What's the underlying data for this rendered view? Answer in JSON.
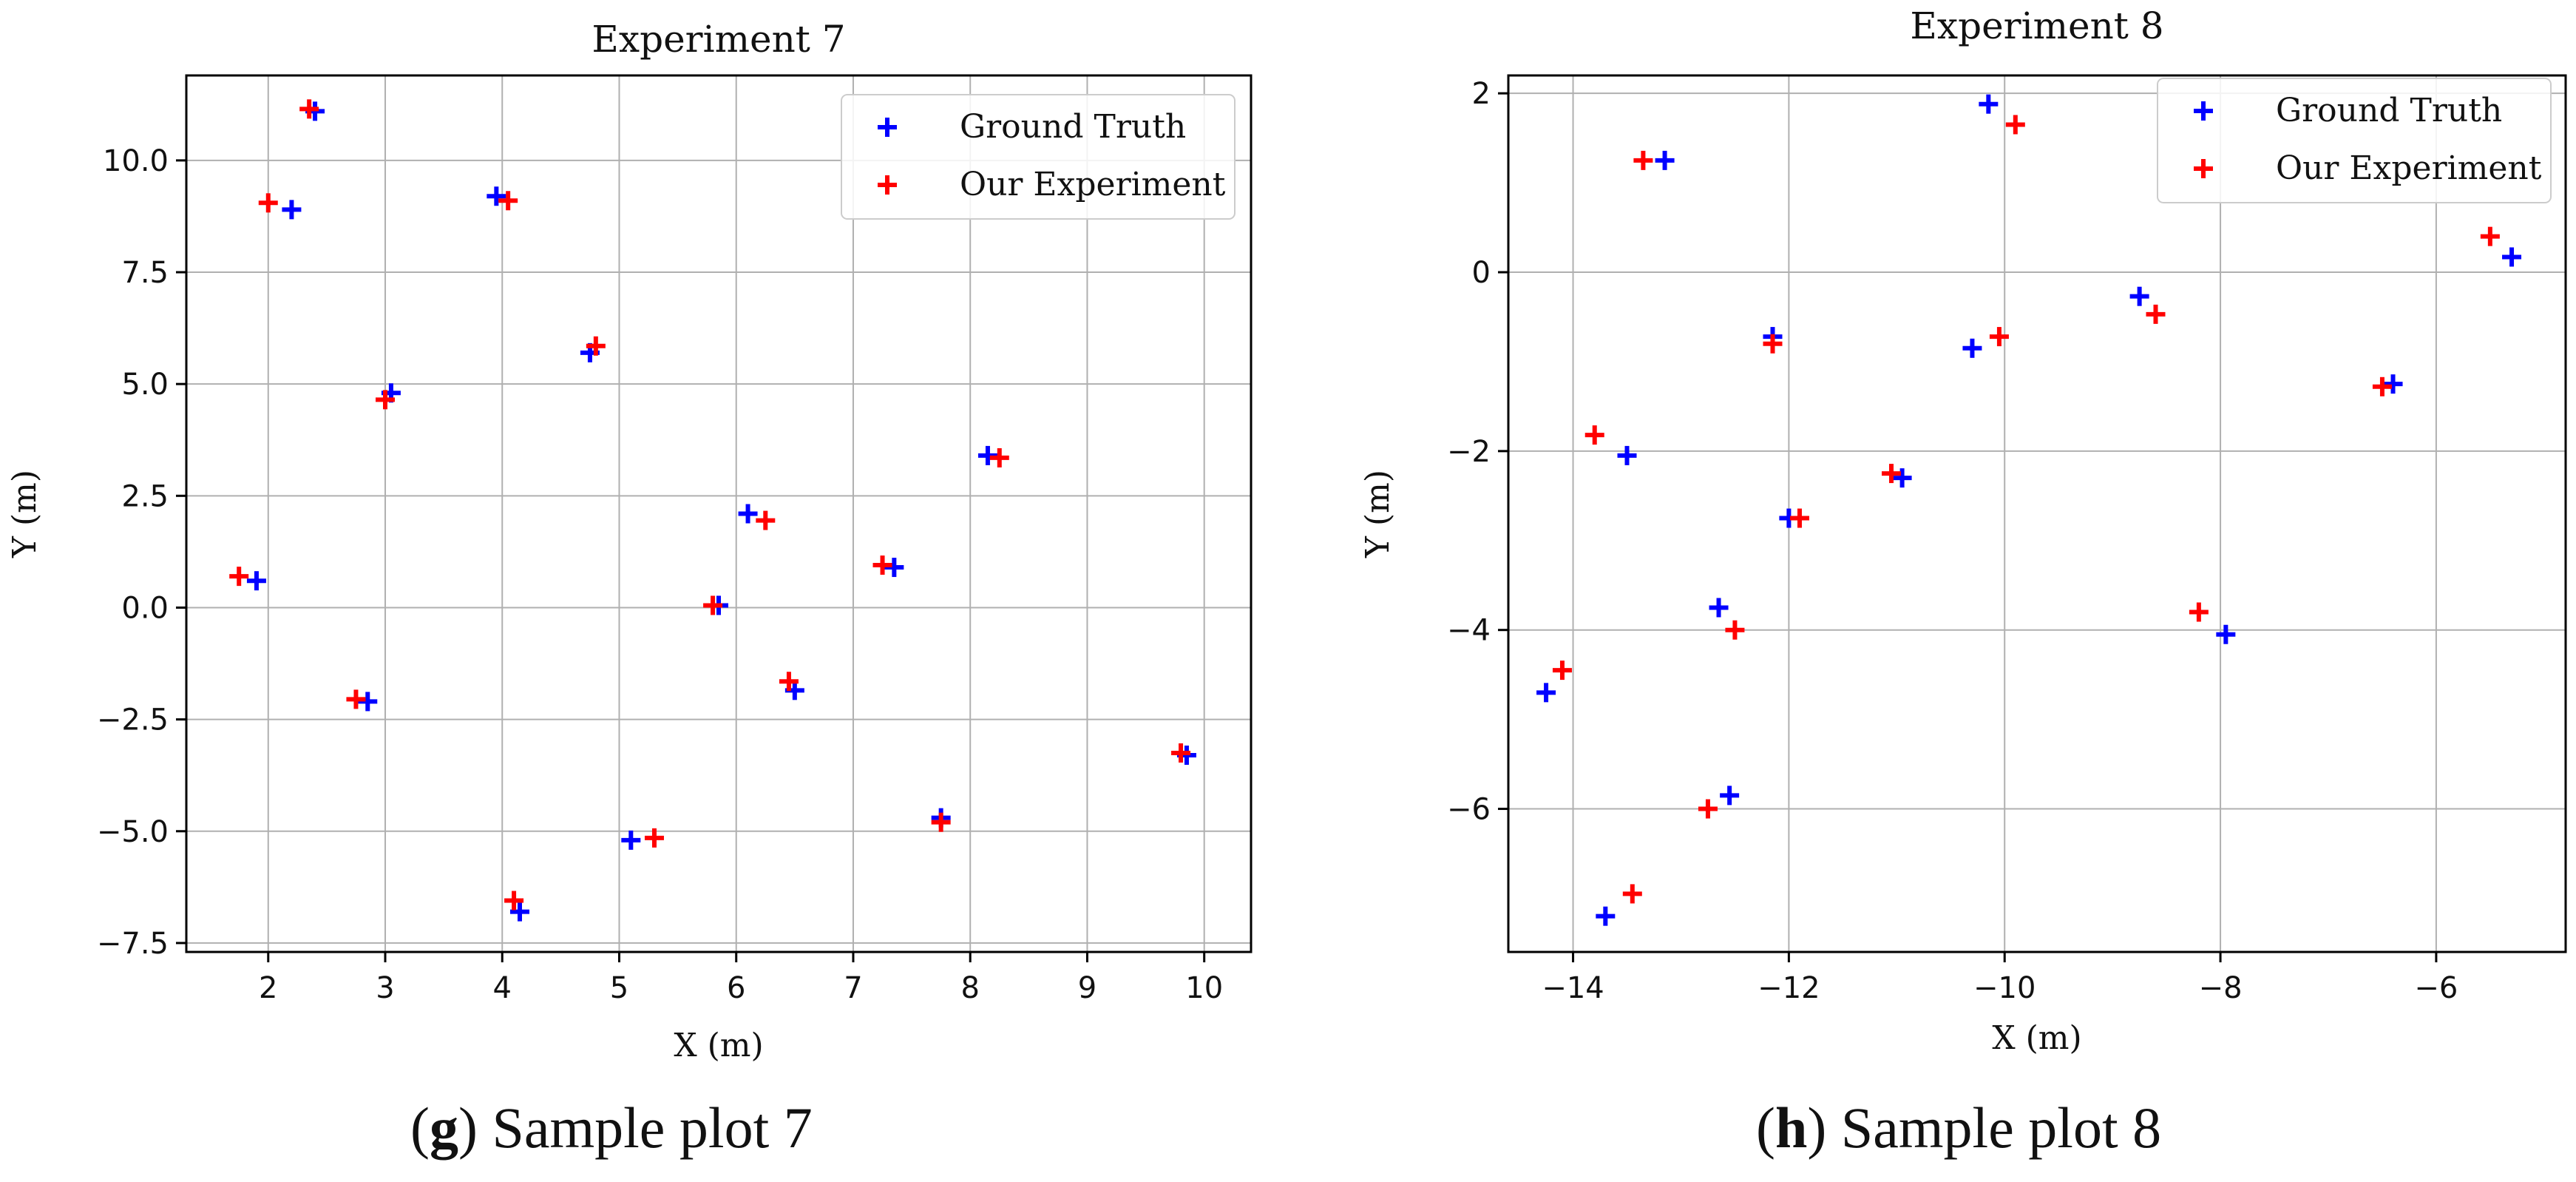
{
  "chart_data": [
    {
      "type": "scatter",
      "title": "Experiment 7",
      "xlabel": "X (m)",
      "ylabel": "Y (m)",
      "xlim": [
        1.3,
        10.4
      ],
      "ylim": [
        -7.7,
        11.9
      ],
      "xticks": [
        2,
        3,
        4,
        5,
        6,
        7,
        8,
        9,
        10
      ],
      "yticks": [
        -7.5,
        -5.0,
        -2.5,
        0.0,
        2.5,
        5.0,
        7.5,
        10.0
      ],
      "xtick_labels": [
        "2",
        "3",
        "4",
        "5",
        "6",
        "7",
        "8",
        "9",
        "10"
      ],
      "ytick_labels": [
        "−7.5",
        "−5.0",
        "−2.5",
        "0.0",
        "2.5",
        "5.0",
        "7.5",
        "10.0"
      ],
      "grid": true,
      "legend_position": "top-right",
      "series": [
        {
          "name": "Ground Truth",
          "color": "#0000ff",
          "marker": "+",
          "points": [
            [
              2.4,
              11.1
            ],
            [
              2.2,
              8.9
            ],
            [
              3.95,
              9.2
            ],
            [
              3.05,
              4.8
            ],
            [
              4.75,
              5.7
            ],
            [
              1.9,
              0.6
            ],
            [
              2.85,
              -2.1
            ],
            [
              6.1,
              2.1
            ],
            [
              5.85,
              0.05
            ],
            [
              7.35,
              0.9
            ],
            [
              8.15,
              3.4
            ],
            [
              6.5,
              -1.85
            ],
            [
              5.1,
              -5.2
            ],
            [
              4.15,
              -6.8
            ],
            [
              7.75,
              -4.7
            ],
            [
              9.85,
              -3.3
            ]
          ]
        },
        {
          "name": "Our Experiment",
          "color": "#ff0000",
          "marker": "+",
          "points": [
            [
              2.35,
              11.15
            ],
            [
              2.0,
              9.05
            ],
            [
              4.05,
              9.1
            ],
            [
              3.0,
              4.65
            ],
            [
              4.8,
              5.85
            ],
            [
              1.75,
              0.7
            ],
            [
              2.75,
              -2.05
            ],
            [
              6.25,
              1.95
            ],
            [
              5.8,
              0.05
            ],
            [
              7.25,
              0.95
            ],
            [
              8.25,
              3.35
            ],
            [
              6.45,
              -1.65
            ],
            [
              5.3,
              -5.15
            ],
            [
              4.1,
              -6.55
            ],
            [
              7.75,
              -4.8
            ],
            [
              9.8,
              -3.25
            ]
          ]
        }
      ]
    },
    {
      "type": "scatter",
      "title": "Experiment 8",
      "xlabel": "X (m)",
      "ylabel": "Y (m)",
      "xlim": [
        -14.6,
        -4.8
      ],
      "ylim": [
        -7.6,
        2.2
      ],
      "xticks": [
        -14,
        -12,
        -10,
        -8,
        -6
      ],
      "yticks": [
        -6,
        -4,
        -2,
        0,
        2
      ],
      "xtick_labels": [
        "−14",
        "−12",
        "−10",
        "−8",
        "−6"
      ],
      "ytick_labels": [
        "−6",
        "−4",
        "−2",
        "0",
        "2"
      ],
      "grid": true,
      "legend_position": "top-right",
      "series": [
        {
          "name": "Ground Truth",
          "color": "#0000ff",
          "marker": "+",
          "points": [
            [
              -13.15,
              1.25
            ],
            [
              -10.15,
              1.88
            ],
            [
              -5.3,
              0.17
            ],
            [
              -8.75,
              -0.27
            ],
            [
              -10.3,
              -0.85
            ],
            [
              -12.15,
              -0.72
            ],
            [
              -6.4,
              -1.25
            ],
            [
              -13.5,
              -2.05
            ],
            [
              -10.95,
              -2.3
            ],
            [
              -12.0,
              -2.75
            ],
            [
              -12.65,
              -3.75
            ],
            [
              -7.95,
              -4.05
            ],
            [
              -14.25,
              -4.7
            ],
            [
              -12.55,
              -5.85
            ],
            [
              -13.7,
              -7.2
            ]
          ]
        },
        {
          "name": "Our Experiment",
          "color": "#ff0000",
          "marker": "+",
          "points": [
            [
              -13.35,
              1.25
            ],
            [
              -9.9,
              1.65
            ],
            [
              -5.5,
              0.4
            ],
            [
              -8.6,
              -0.47
            ],
            [
              -10.05,
              -0.72
            ],
            [
              -12.15,
              -0.8
            ],
            [
              -6.5,
              -1.28
            ],
            [
              -13.8,
              -1.82
            ],
            [
              -11.05,
              -2.25
            ],
            [
              -11.9,
              -2.75
            ],
            [
              -12.5,
              -4.0
            ],
            [
              -8.2,
              -3.8
            ],
            [
              -14.1,
              -4.45
            ],
            [
              -12.75,
              -6.0
            ],
            [
              -13.45,
              -6.95
            ]
          ]
        }
      ]
    }
  ],
  "captions": [
    {
      "letter": "g",
      "text": ") Sample plot 7",
      "open": "("
    },
    {
      "letter": "h",
      "text": ") Sample plot 8",
      "open": "("
    }
  ]
}
